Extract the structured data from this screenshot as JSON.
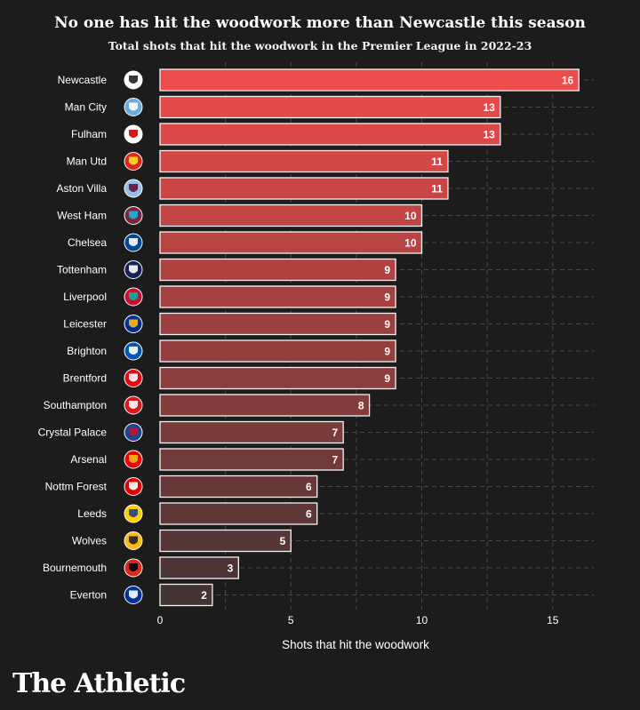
{
  "header": {
    "title": "No one has hit the woodwork more than Newcastle this season",
    "subtitle": "Total shots that hit the woodwork in the Premier League in 2022-23"
  },
  "branding": {
    "logo_text": "The Athletic"
  },
  "colors": {
    "background": "#1c1c1c",
    "bar_top": "#ee4b4b",
    "bar_bottom": "#443333",
    "grid": "#4a4a4a",
    "text": "#ffffff"
  },
  "chart_data": {
    "type": "bar",
    "orientation": "horizontal",
    "title": "No one has hit the woodwork more than Newcastle this season",
    "subtitle": "Total shots that hit the woodwork in the Premier League in 2022-23",
    "xlabel": "Shots that hit the woodwork",
    "ylabel": "",
    "xlim": [
      0,
      16
    ],
    "xticks": [
      0,
      5,
      10,
      15
    ],
    "grid": true,
    "categories": [
      "Newcastle",
      "Man City",
      "Fulham",
      "Man Utd",
      "Aston Villa",
      "West Ham",
      "Chelsea",
      "Tottenham",
      "Liverpool",
      "Leicester",
      "Brighton",
      "Brentford",
      "Southampton",
      "Crystal Palace",
      "Arsenal",
      "Nottm Forest",
      "Leeds",
      "Wolves",
      "Bournemouth",
      "Everton"
    ],
    "values": [
      16,
      13,
      13,
      11,
      11,
      10,
      10,
      9,
      9,
      9,
      9,
      9,
      8,
      7,
      7,
      6,
      6,
      5,
      3,
      2
    ],
    "badges": [
      {
        "icon": "newcastle-crest-icon",
        "color": "#ffffff",
        "accent": "#222222"
      },
      {
        "icon": "man-city-crest-icon",
        "color": "#6cabdd",
        "accent": "#ffffff"
      },
      {
        "icon": "fulham-crest-icon",
        "color": "#ffffff",
        "accent": "#cc0000"
      },
      {
        "icon": "man-utd-crest-icon",
        "color": "#da291c",
        "accent": "#fbe122"
      },
      {
        "icon": "aston-villa-crest-icon",
        "color": "#95bfe5",
        "accent": "#670e36"
      },
      {
        "icon": "west-ham-crest-icon",
        "color": "#7a263a",
        "accent": "#1bb1e7"
      },
      {
        "icon": "chelsea-crest-icon",
        "color": "#034694",
        "accent": "#ffffff"
      },
      {
        "icon": "tottenham-crest-icon",
        "color": "#132257",
        "accent": "#ffffff"
      },
      {
        "icon": "liverpool-crest-icon",
        "color": "#c8102e",
        "accent": "#00b2a9"
      },
      {
        "icon": "leicester-crest-icon",
        "color": "#003090",
        "accent": "#fdbe11"
      },
      {
        "icon": "brighton-crest-icon",
        "color": "#0057b8",
        "accent": "#ffffff"
      },
      {
        "icon": "brentford-crest-icon",
        "color": "#e30613",
        "accent": "#ffffff"
      },
      {
        "icon": "southampton-crest-icon",
        "color": "#d71920",
        "accent": "#ffffff"
      },
      {
        "icon": "crystal-palace-crest-icon",
        "color": "#1b458f",
        "accent": "#c4122e"
      },
      {
        "icon": "arsenal-crest-icon",
        "color": "#ef0107",
        "accent": "#fdb913"
      },
      {
        "icon": "nottm-forest-crest-icon",
        "color": "#dd0000",
        "accent": "#ffffff"
      },
      {
        "icon": "leeds-crest-icon",
        "color": "#ffcd00",
        "accent": "#1d428a"
      },
      {
        "icon": "wolves-crest-icon",
        "color": "#fdb913",
        "accent": "#231f20"
      },
      {
        "icon": "bournemouth-crest-icon",
        "color": "#da291c",
        "accent": "#000000"
      },
      {
        "icon": "everton-crest-icon",
        "color": "#003399",
        "accent": "#ffffff"
      }
    ]
  }
}
